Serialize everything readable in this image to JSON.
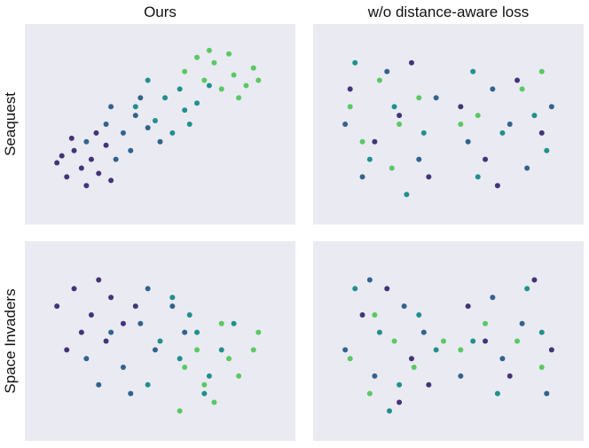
{
  "chart_data": [
    {
      "type": "scatter",
      "title": "Ours",
      "ylabel": "Seaquest",
      "xlim": [
        0,
        100
      ],
      "ylim": [
        0,
        100
      ],
      "series": [
        {
          "color": "#433479",
          "x": [
            8,
            12,
            15,
            18,
            20,
            22,
            25,
            28,
            14,
            30,
            10,
            24
          ],
          "y": [
            28,
            20,
            35,
            25,
            15,
            30,
            22,
            38,
            42,
            18,
            32,
            45
          ]
        },
        {
          "color": "#33638d",
          "x": [
            20,
            28,
            32,
            35,
            40,
            38,
            45,
            30,
            50,
            42
          ],
          "y": [
            40,
            50,
            30,
            45,
            55,
            35,
            48,
            60,
            40,
            65
          ]
        },
        {
          "color": "#21908d",
          "x": [
            40,
            48,
            52,
            55,
            60,
            58,
            65,
            45,
            62,
            70
          ],
          "y": [
            60,
            52,
            65,
            45,
            58,
            70,
            62,
            75,
            50,
            72
          ]
        },
        {
          "color": "#5ac864",
          "x": [
            60,
            68,
            72,
            75,
            80,
            78,
            85,
            88,
            70,
            65,
            82,
            90
          ],
          "y": [
            80,
            75,
            85,
            70,
            78,
            90,
            72,
            82,
            92,
            88,
            65,
            75
          ]
        }
      ]
    },
    {
      "type": "scatter",
      "title": "w/o distance-aware loss",
      "xlim": [
        0,
        100
      ],
      "ylim": [
        0,
        100
      ],
      "series": [
        {
          "color": "#433479",
          "x": [
            10,
            20,
            35,
            42,
            55,
            65,
            78,
            88,
            30,
            70
          ],
          "y": [
            70,
            40,
            85,
            20,
            60,
            30,
            75,
            45,
            55,
            15
          ]
        },
        {
          "color": "#33638d",
          "x": [
            8,
            25,
            38,
            15,
            58,
            68,
            82,
            92,
            45,
            75
          ],
          "y": [
            50,
            80,
            30,
            20,
            40,
            70,
            25,
            60,
            65,
            50
          ]
        },
        {
          "color": "#21908d",
          "x": [
            12,
            28,
            40,
            18,
            60,
            72,
            85,
            90,
            33,
            62
          ],
          "y": [
            85,
            60,
            45,
            30,
            80,
            45,
            55,
            35,
            10,
            20
          ]
        },
        {
          "color": "#5ac864",
          "x": [
            10,
            22,
            30,
            38,
            15,
            27,
            62,
            80,
            55,
            88
          ],
          "y": [
            60,
            75,
            50,
            65,
            40,
            25,
            55,
            70,
            50,
            80
          ]
        }
      ]
    },
    {
      "type": "scatter",
      "ylabel": "Space Invaders",
      "xlim": [
        0,
        100
      ],
      "ylim": [
        0,
        100
      ],
      "series": [
        {
          "color": "#433479",
          "x": [
            8,
            15,
            22,
            30,
            18,
            25,
            35,
            12,
            40,
            28
          ],
          "y": [
            70,
            80,
            65,
            75,
            55,
            85,
            60,
            45,
            70,
            50
          ]
        },
        {
          "color": "#33638d",
          "x": [
            20,
            30,
            42,
            48,
            35,
            55,
            25,
            45,
            60,
            38
          ],
          "y": [
            40,
            55,
            60,
            45,
            35,
            70,
            25,
            80,
            55,
            20
          ]
        },
        {
          "color": "#21908d",
          "x": [
            50,
            58,
            62,
            70,
            45,
            65,
            75,
            55,
            80,
            68
          ],
          "y": [
            50,
            40,
            65,
            30,
            25,
            55,
            45,
            75,
            60,
            20
          ]
        },
        {
          "color": "#5ac864",
          "x": [
            60,
            68,
            72,
            78,
            82,
            88,
            58,
            75,
            90,
            65
          ],
          "y": [
            35,
            25,
            15,
            40,
            30,
            45,
            10,
            60,
            55,
            45
          ]
        }
      ]
    },
    {
      "type": "scatter",
      "xlim": [
        0,
        100
      ],
      "ylim": [
        0,
        100
      ],
      "series": [
        {
          "color": "#433479",
          "x": [
            15,
            25,
            35,
            42,
            58,
            65,
            75,
            85,
            92,
            30
          ],
          "y": [
            65,
            80,
            40,
            25,
            70,
            50,
            30,
            85,
            45,
            15
          ]
        },
        {
          "color": "#33638d",
          "x": [
            8,
            20,
            32,
            40,
            55,
            68,
            80,
            90,
            18,
            72
          ],
          "y": [
            45,
            30,
            70,
            55,
            30,
            75,
            60,
            20,
            85,
            40
          ]
        },
        {
          "color": "#21908d",
          "x": [
            12,
            22,
            30,
            38,
            60,
            70,
            82,
            88,
            45,
            26
          ],
          "y": [
            80,
            55,
            25,
            65,
            50,
            20,
            80,
            55,
            45,
            10
          ]
        },
        {
          "color": "#5ac864",
          "x": [
            10,
            18,
            28,
            36,
            55,
            65,
            78,
            88,
            20,
            48
          ],
          "y": [
            40,
            20,
            50,
            35,
            45,
            60,
            50,
            35,
            65,
            50
          ]
        }
      ]
    }
  ]
}
